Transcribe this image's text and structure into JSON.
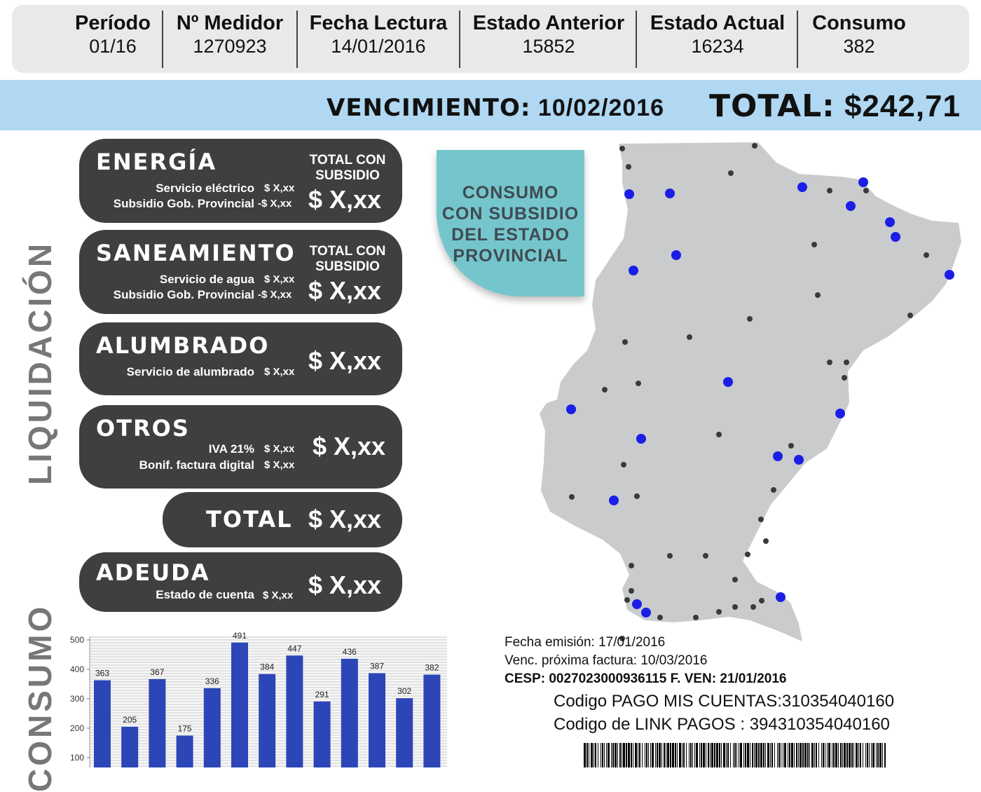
{
  "header": {
    "columns": [
      {
        "label": "Período",
        "value": "01/16"
      },
      {
        "label": "Nº Medidor",
        "value": "1270923"
      },
      {
        "label": "Fecha Lectura",
        "value": "14/01/2016"
      },
      {
        "label": "Estado Anterior",
        "value": "15852"
      },
      {
        "label": "Estado Actual",
        "value": "16234"
      },
      {
        "label": "Consumo",
        "value": "382"
      }
    ]
  },
  "due": {
    "vencimiento_label": "VENCIMIENTO:",
    "vencimiento_date": "10/02/2016",
    "total_label": "TOTAL:",
    "total_value": "$242,71"
  },
  "side_labels": {
    "liquidacion": "LIQUIDACIÓN",
    "consumo": "CONSUMO"
  },
  "liquidacion": {
    "energia": {
      "title": "ENERGÍA",
      "total_label_1": "TOTAL CON",
      "total_label_2": "SUBSIDIO",
      "line1": "Servicio eléctrico",
      "line1_value": "$ X,xx",
      "line2": "Subsidio Gob. Provincial",
      "line2_value": "-$ X,xx",
      "amount": "$ X,xx"
    },
    "saneamiento": {
      "title": "SANEAMIENTO",
      "total_label_1": "TOTAL CON",
      "total_label_2": "SUBSIDIO",
      "line1": "Servicio de agua",
      "line1_value": "$ X,xx",
      "line2": "Subsidio Gob. Provincial",
      "line2_value": "-$ X,xx",
      "amount": "$ X,xx"
    },
    "alumbrado": {
      "title": "ALUMBRADO",
      "line1": "Servicio de alumbrado",
      "line1_value": "$ X,xx",
      "amount": "$ X,xx"
    },
    "otros": {
      "title": "OTROS",
      "line1": "IVA 21%",
      "line1_value": "$ X,xx",
      "line2": "Bonif. factura digital",
      "line2_value": "$ X,xx",
      "amount": "$ X,xx"
    },
    "total": {
      "title": "TOTAL",
      "amount": "$ X,xx"
    },
    "adeuda": {
      "title": "ADEUDA",
      "line1": "Estado de cuenta",
      "line1_value": "$ X,xx",
      "amount": "$ X,xx"
    }
  },
  "subsidy_badge": {
    "line1": "CONSUMO",
    "line2": "CON SUBSIDIO",
    "line3": "DEL ESTADO",
    "line4": "PROVINCIAL"
  },
  "bill_info": {
    "emision": "Fecha emisión: 17/01/2016",
    "proxima": "Venc. próxima factura: 10/03/2016",
    "cesp": "CESP:  0027023000936115  F. VEN: 21/01/2016",
    "pago_mis_cuentas": "Codigo PAGO MIS CUENTAS:310354040160",
    "link_pagos": "Codigo de LINK PAGOS :  394310354040160"
  },
  "colors": {
    "band": "#b0d8f2",
    "pill": "#3f3f41",
    "badge": "#74c6cc",
    "map_fill": "#cacbcd",
    "blue_dot": "#1a1ee6",
    "bar": "#2c46b8"
  },
  "chart_data": {
    "type": "bar",
    "categories": [
      "",
      "",
      "",
      "",
      "",
      "",
      "",
      "",
      "",
      "",
      "",
      "",
      ""
    ],
    "values": [
      363,
      205,
      367,
      175,
      336,
      491,
      384,
      447,
      291,
      436,
      387,
      302,
      382
    ],
    "yticks": [
      "100",
      "200",
      "300",
      "400",
      "500"
    ],
    "ylim": [
      0,
      520
    ],
    "title": "",
    "xlabel": "",
    "ylabel": "",
    "grid": true
  }
}
